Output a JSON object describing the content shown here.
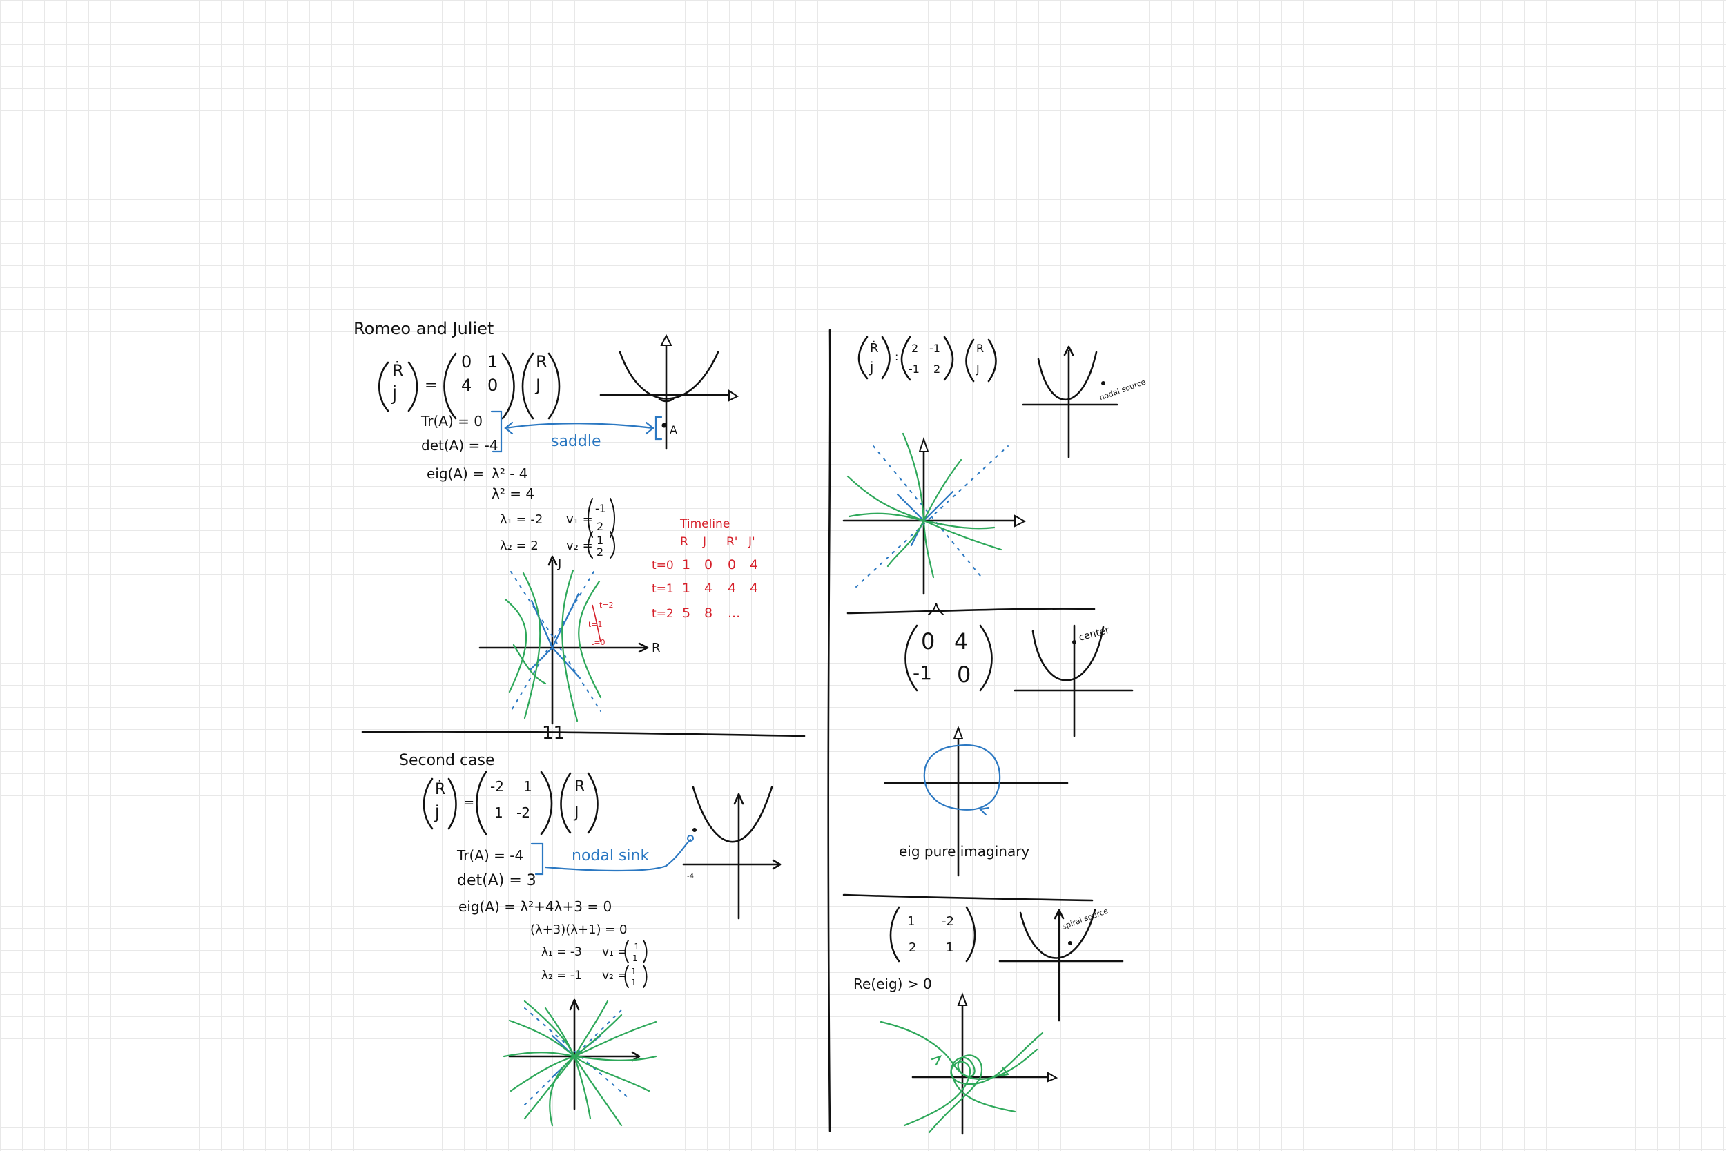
{
  "title": "Romeo and Juliet",
  "case1": {
    "lhs": [
      "Ṙ",
      "J̇"
    ],
    "matrix": [
      [
        "0",
        "1"
      ],
      [
        "4",
        "0"
      ]
    ],
    "rhs": [
      "R",
      "J"
    ],
    "trace": "Tr(A) = 0",
    "det": "det(A) = -4",
    "classification": "saddle",
    "eig_label": "eig(A) =",
    "eig_lines": [
      "λ² - 4",
      "λ² = 4",
      "λ₁ = -2",
      "λ₂ = 2"
    ],
    "v1_label": "v₁ =",
    "v1": [
      "-1",
      "2"
    ],
    "v2_label": "v₂ =",
    "v2": [
      "1",
      "2"
    ],
    "point_label": "A",
    "axis_x": "R",
    "axis_y": "J",
    "phase_labels": [
      "t=2",
      "t=1",
      "t=0"
    ]
  },
  "timeline": {
    "title": "Timeline",
    "headers": [
      "R",
      "J",
      "R'",
      "J'"
    ],
    "rows": [
      {
        "t": "t=0",
        "values": [
          "1",
          "0",
          "0",
          "4"
        ]
      },
      {
        "t": "t=1",
        "values": [
          "1",
          "4",
          "4",
          "4"
        ]
      },
      {
        "t": "t=2",
        "values": [
          "5",
          "8",
          "...",
          ""
        ]
      }
    ]
  },
  "case2": {
    "title": "Second case",
    "lhs": [
      "Ṙ",
      "J̇"
    ],
    "matrix": [
      [
        "-2",
        "1"
      ],
      [
        "1",
        "-2"
      ]
    ],
    "rhs": [
      "R",
      "J"
    ],
    "trace": "Tr(A) = -4",
    "det": "det(A) = 3",
    "classification": "nodal sink",
    "eig_lines": [
      "eig(A) = λ²+4λ+3 = 0",
      "(λ+3)(λ+1) = 0",
      "λ₁ = -3",
      "λ₂ = -1"
    ],
    "v1_label": "v₁ =",
    "v1": [
      "-1",
      "1"
    ],
    "v2_label": "v₂ =",
    "v2": [
      "1",
      "1"
    ],
    "axis_tick": "-4"
  },
  "case3": {
    "lhs": [
      "Ṙ",
      "J̇"
    ],
    "matrix": [
      [
        "2",
        "-1"
      ],
      [
        "-1",
        "2"
      ]
    ],
    "rhs": [
      "R",
      "J"
    ],
    "classification": "nodal source"
  },
  "case4": {
    "matrix": [
      [
        "0",
        "4"
      ],
      [
        "-1",
        "0"
      ]
    ],
    "classification": "center",
    "note": "eig pure imaginary"
  },
  "case5": {
    "matrix": [
      [
        "1",
        "-2"
      ],
      [
        "2",
        "1"
      ]
    ],
    "classification": "spiral source",
    "note": "Re(eig) > 0"
  },
  "divider_mark": "11"
}
